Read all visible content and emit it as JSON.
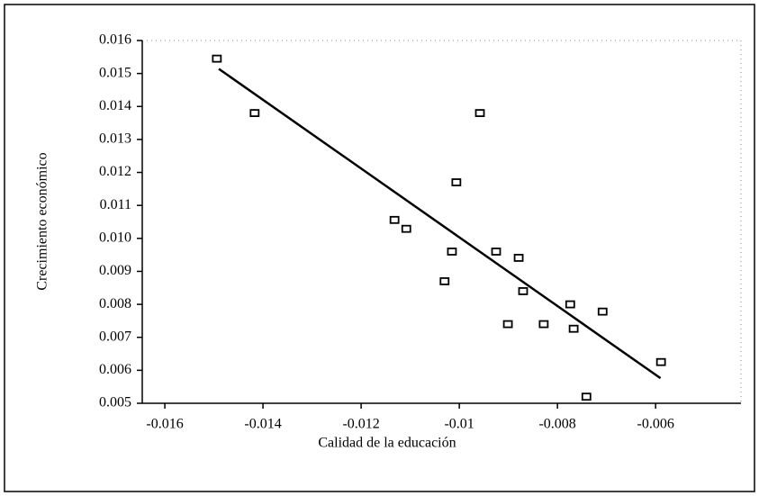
{
  "chart_data": {
    "type": "scatter",
    "x_label": "Calidad de la educación",
    "y_label": "Crecimiento económico",
    "x": [
      -0.01494,
      -0.01417,
      -0.00958,
      -0.01006,
      -0.01132,
      -0.01108,
      -0.01015,
      -0.00925,
      -0.00879,
      -0.0103,
      -0.0087,
      -0.00774,
      -0.00708,
      -0.00901,
      -0.00828,
      -0.00767,
      -0.00589,
      -0.00741
    ],
    "values": [
      0.01545,
      0.0138,
      0.0138,
      0.0117,
      0.01056,
      0.01029,
      0.0096,
      0.0096,
      0.00941,
      0.0087,
      0.0084,
      0.008,
      0.00778,
      0.0074,
      0.0074,
      0.00726,
      0.00625,
      0.0052
    ],
    "fit": {
      "x": [
        -0.0149,
        -0.0059
      ],
      "values": [
        0.01514,
        0.00576
      ]
    },
    "xlim": [
      -0.01646,
      -0.00426
    ],
    "ylim": [
      0.005,
      0.016
    ],
    "xticks": [
      -0.016,
      -0.014,
      -0.012,
      -0.01,
      -0.008,
      -0.006
    ],
    "yticks": [
      0.016,
      0.015,
      0.014,
      0.013,
      0.012,
      0.011,
      {
        "value": 0.01,
        "label": "0.010"
      },
      0.009,
      0.008,
      0.007,
      0.006,
      0.005
    ],
    "color": "#000000",
    "grid": false
  }
}
